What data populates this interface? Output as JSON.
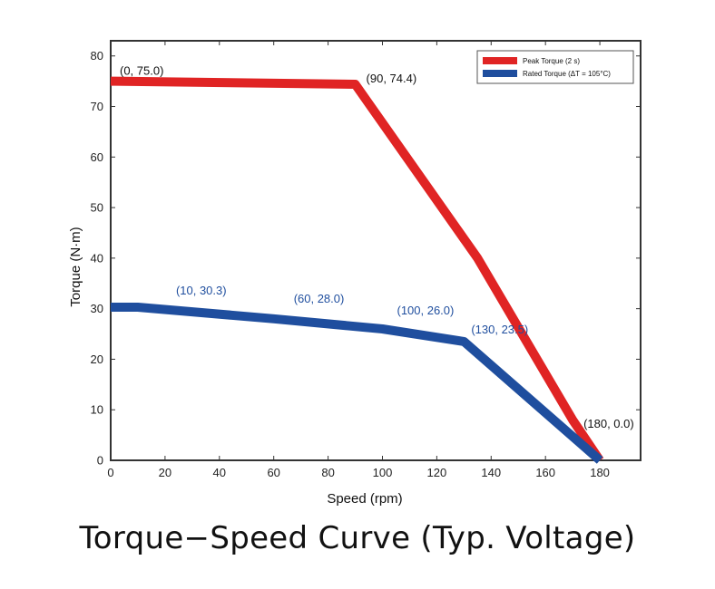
{
  "chart_data": {
    "type": "line",
    "title": "Torque−Speed Curve (Typ. Voltage)",
    "xlabel": "Speed (rpm)",
    "ylabel": "Torque (N·m)",
    "xlim": [
      0,
      195
    ],
    "ylim": [
      0,
      83
    ],
    "xticks": [
      0,
      20,
      40,
      60,
      80,
      100,
      120,
      140,
      160,
      180
    ],
    "yticks": [
      0,
      10,
      20,
      30,
      40,
      50,
      60,
      70,
      80
    ],
    "grid": false,
    "legend_position": "top-right",
    "series": [
      {
        "name": "Peak Torque (2 s)",
        "color": "#e02424",
        "points": [
          {
            "x": 0,
            "y": 75.0
          },
          {
            "x": 90,
            "y": 74.4
          },
          {
            "x": 135,
            "y": 40.0
          },
          {
            "x": 170,
            "y": 8.0
          },
          {
            "x": 180,
            "y": 0.0
          }
        ]
      },
      {
        "name": "Rated Torque (ΔT = 105°C)",
        "color": "#1f4e9e",
        "points": [
          {
            "x": 0,
            "y": 30.3
          },
          {
            "x": 10,
            "y": 30.3
          },
          {
            "x": 60,
            "y": 28.0
          },
          {
            "x": 100,
            "y": 26.0
          },
          {
            "x": 130,
            "y": 23.5
          },
          {
            "x": 180,
            "y": 0.0
          }
        ]
      }
    ],
    "annotations": [
      {
        "text": "(0, 75.0)",
        "x": 0,
        "y": 75.0,
        "series": 0
      },
      {
        "text": "(90, 74.4)",
        "x": 90,
        "y": 74.4,
        "series": 0
      },
      {
        "text": "(180, 0.0)",
        "x": 180,
        "y": 0.0,
        "series": 0
      },
      {
        "text": "(10, 30.3)",
        "x": 10,
        "y": 30.3,
        "series": 1
      },
      {
        "text": "(60, 28.0)",
        "x": 60,
        "y": 28.0,
        "series": 1
      },
      {
        "text": "(100, 26.0)",
        "x": 100,
        "y": 26.0,
        "series": 1
      },
      {
        "text": "(130, 23.5)",
        "x": 130,
        "y": 23.5,
        "series": 1
      }
    ]
  }
}
